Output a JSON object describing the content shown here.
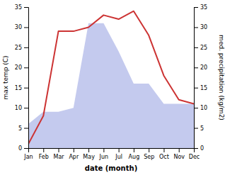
{
  "chart_data": {
    "type": "line",
    "categories": [
      "Jan",
      "Feb",
      "Mar",
      "Apr",
      "May",
      "Jun",
      "Jul",
      "Aug",
      "Sep",
      "Oct",
      "Nov",
      "Dec"
    ],
    "xlabel": "date (month)",
    "ylabel": "max temp (C)",
    "y2label": "med. precipitation (kg/m2)",
    "ylim": [
      0,
      35
    ],
    "yticks": [
      0,
      5,
      10,
      15,
      20,
      25,
      30,
      35
    ],
    "y2lim": [
      0,
      35
    ],
    "y2ticks": [
      0,
      5,
      10,
      15,
      20,
      25,
      30,
      35
    ],
    "grid": false,
    "series": [
      {
        "type": "area",
        "axis": "y2",
        "color": "#b0b8e8",
        "values": [
          6,
          9,
          9,
          10,
          31,
          31,
          24,
          16,
          16,
          11,
          11,
          11
        ]
      },
      {
        "type": "line",
        "color": "#cc3333",
        "values": [
          1,
          8,
          29,
          29,
          30,
          33,
          32,
          34,
          28,
          18,
          12,
          11
        ]
      }
    ]
  }
}
